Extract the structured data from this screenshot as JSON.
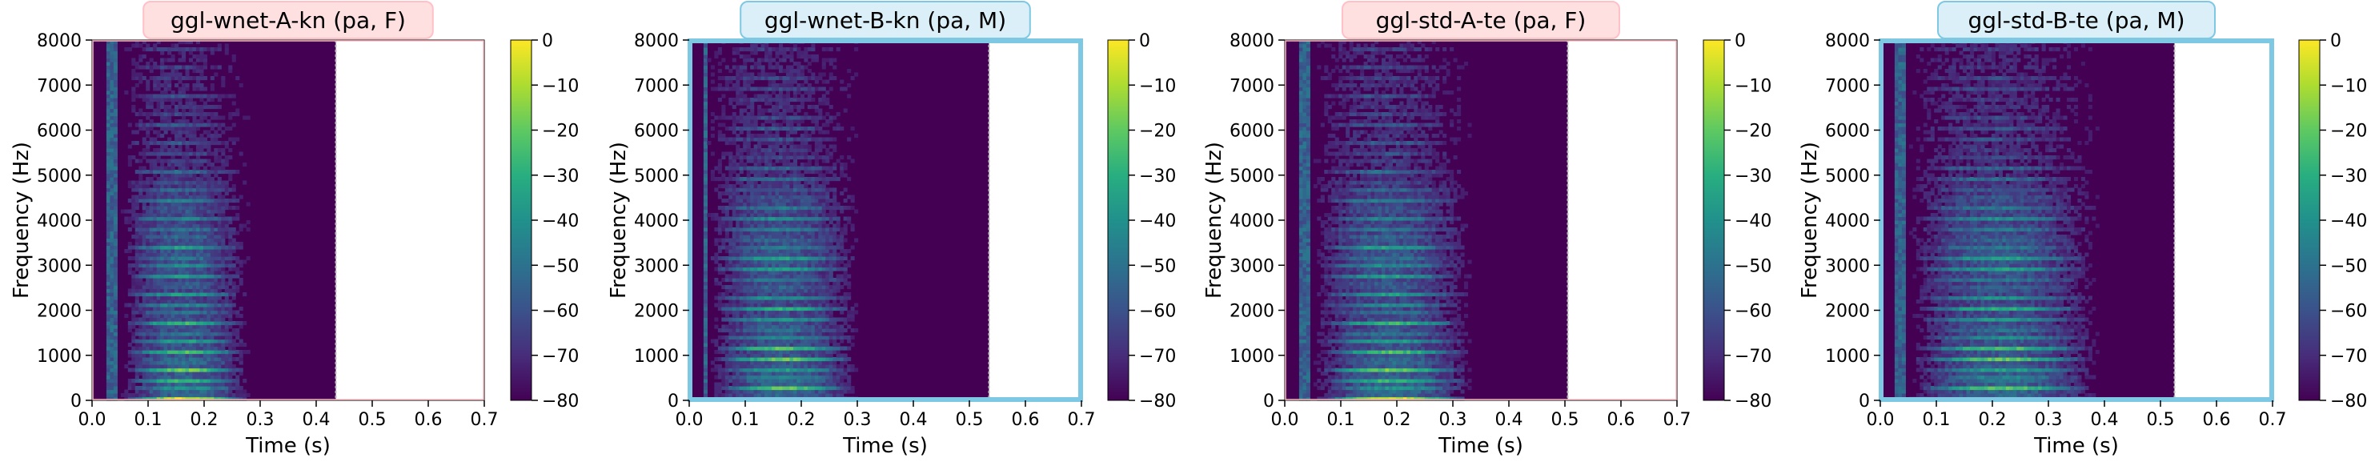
{
  "colors": {
    "frame_female": "#ffc0c7",
    "frame_male": "#7ec8e3",
    "title_box_female": "#ffe0e0",
    "title_box_male": "#dbeff8",
    "background": "#440154"
  },
  "chart_data": [
    {
      "type": "heatmap",
      "title": "ggl-wnet-A-kn (pa, F)",
      "xlabel": "Time (s)",
      "ylabel": "Frequency (Hz)",
      "xlim": [
        0.0,
        0.7
      ],
      "ylim": [
        0,
        8000
      ],
      "x_ticks": [
        "0.0",
        "0.1",
        "0.2",
        "0.3",
        "0.4",
        "0.5",
        "0.6",
        "0.7"
      ],
      "y_ticks": [
        "0",
        "1000",
        "2000",
        "3000",
        "4000",
        "5000",
        "6000",
        "7000",
        "8000"
      ],
      "colorbar": {
        "ticks": [
          "0",
          "−10",
          "−20",
          "−30",
          "−40",
          "−50",
          "−60",
          "−70",
          "−80"
        ],
        "range": [
          -80,
          0
        ],
        "colormap": "viridis"
      },
      "signal_end_s": 0.435,
      "speech_span_s": [
        0.05,
        0.3
      ],
      "frame": "female"
    },
    {
      "type": "heatmap",
      "title": "ggl-wnet-B-kn (pa, M)",
      "xlabel": "Time (s)",
      "ylabel": "Frequency (Hz)",
      "xlim": [
        0.0,
        0.7
      ],
      "ylim": [
        0,
        8000
      ],
      "x_ticks": [
        "0.0",
        "0.1",
        "0.2",
        "0.3",
        "0.4",
        "0.5",
        "0.6",
        "0.7"
      ],
      "y_ticks": [
        "0",
        "1000",
        "2000",
        "3000",
        "4000",
        "5000",
        "6000",
        "7000",
        "8000"
      ],
      "colorbar": {
        "ticks": [
          "0",
          "−10",
          "−20",
          "−30",
          "−40",
          "−50",
          "−60",
          "−70",
          "−80"
        ],
        "range": [
          -80,
          0
        ],
        "colormap": "viridis"
      },
      "signal_end_s": 0.535,
      "speech_span_s": [
        0.03,
        0.33
      ],
      "frame": "male"
    },
    {
      "type": "heatmap",
      "title": "ggl-std-A-te (pa, F)",
      "xlabel": "Time (s)",
      "ylabel": "Frequency (Hz)",
      "xlim": [
        0.0,
        0.7
      ],
      "ylim": [
        0,
        8000
      ],
      "x_ticks": [
        "0.0",
        "0.1",
        "0.2",
        "0.3",
        "0.4",
        "0.5",
        "0.6",
        "0.7"
      ],
      "y_ticks": [
        "0",
        "1000",
        "2000",
        "3000",
        "4000",
        "5000",
        "6000",
        "7000",
        "8000"
      ],
      "colorbar": {
        "ticks": [
          "0",
          "−10",
          "−20",
          "−30",
          "−40",
          "−50",
          "−60",
          "−70",
          "−80"
        ],
        "range": [
          -80,
          0
        ],
        "colormap": "viridis"
      },
      "signal_end_s": 0.505,
      "speech_span_s": [
        0.05,
        0.36
      ],
      "frame": "female"
    },
    {
      "type": "heatmap",
      "title": "ggl-std-B-te (pa, M)",
      "xlabel": "Time (s)",
      "ylabel": "Frequency (Hz)",
      "xlim": [
        0.0,
        0.7
      ],
      "ylim": [
        0,
        8000
      ],
      "x_ticks": [
        "0.0",
        "0.1",
        "0.2",
        "0.3",
        "0.4",
        "0.5",
        "0.6",
        "0.7"
      ],
      "y_ticks": [
        "0",
        "1000",
        "2000",
        "3000",
        "4000",
        "5000",
        "6000",
        "7000",
        "8000"
      ],
      "colorbar": {
        "ticks": [
          "0",
          "−10",
          "−20",
          "−30",
          "−40",
          "−50",
          "−60",
          "−70",
          "−80"
        ],
        "range": [
          -80,
          0
        ],
        "colormap": "viridis"
      },
      "signal_end_s": 0.525,
      "speech_span_s": [
        0.05,
        0.42
      ],
      "frame": "male"
    }
  ]
}
